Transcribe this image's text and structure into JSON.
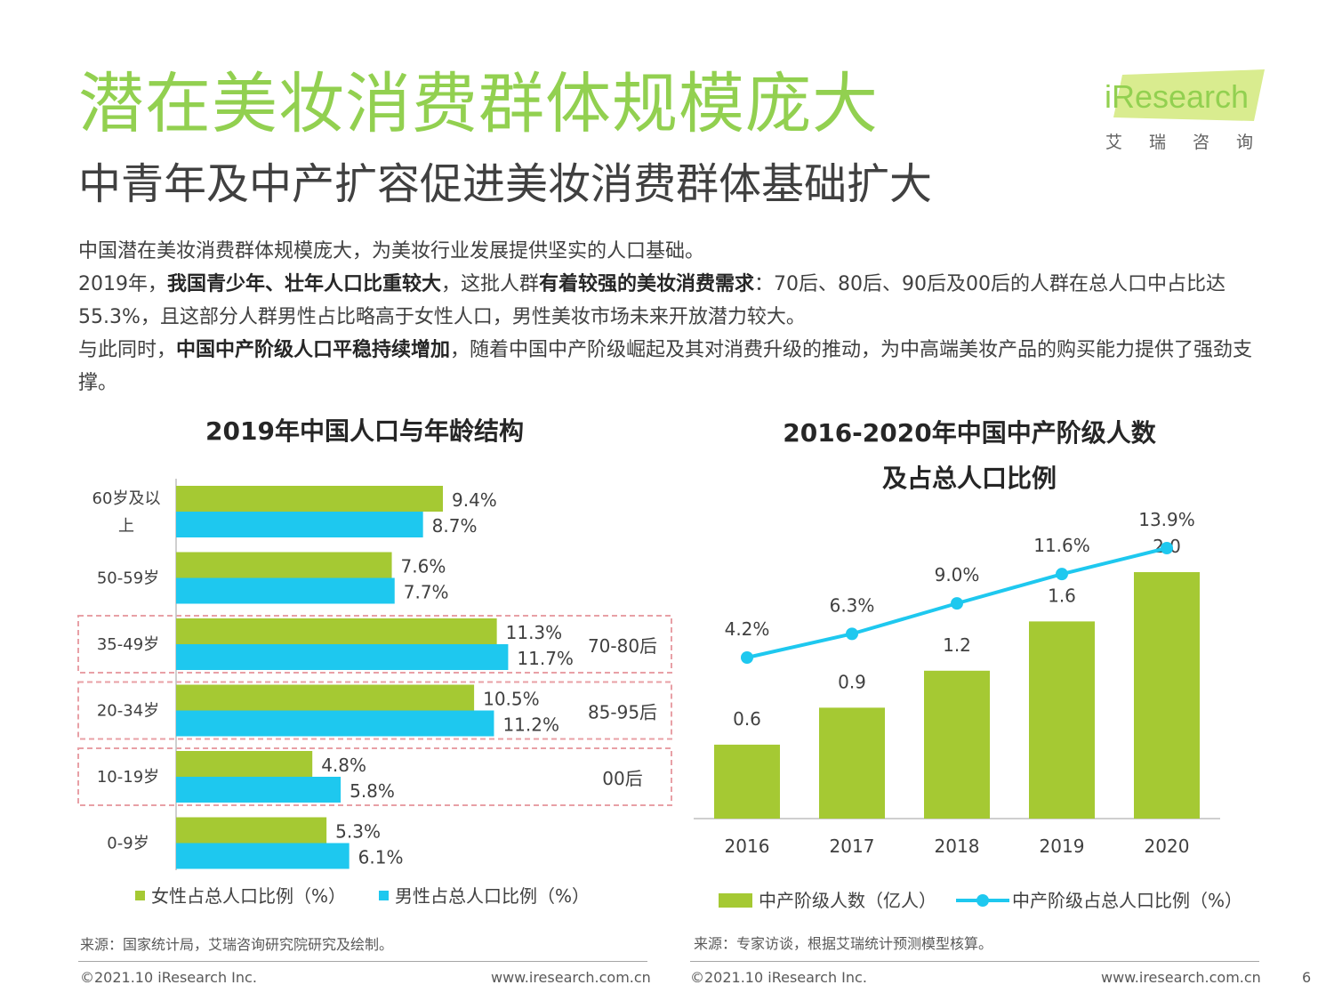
{
  "header": {
    "title": "潜在美妆消费群体规模庞大",
    "subtitle": "中青年及中产扩容促进美妆消费群体基础扩大",
    "logo_text": "iResearch",
    "logo_cn": "艾瑞咨询"
  },
  "intro": {
    "line1": "中国潜在美妆消费群体规模庞大，为美妆行业发展提供坚实的人口基础。",
    "p2_a": "2019年，",
    "p2_b": "我国青少年、壮年人口比重较大",
    "p2_c": "，这批人群",
    "p2_d": "有着较强的美妆消费需求",
    "p2_e": "：70后、80后、90后及00后的人群在总人口中占比达55.3%，且这部分人群男性占比略高于女性人口，男性美妆市场未来开放潜力较大。",
    "p3_a": "与此同时，",
    "p3_b": "中国中产阶级人口平稳持续增加",
    "p3_c": "，随着中国中产阶级崛起及其对消费升级的推动，为中高端美妆产品的购买能力提供了强劲支撑。"
  },
  "colors": {
    "green": "#a5c933",
    "blue": "#1ec8ef",
    "title_green": "#92d050",
    "highlight_border": "#e8a0a6"
  },
  "chart_data": [
    {
      "type": "bar",
      "title": "2019年中国人口与年龄结构",
      "categories": [
        "60岁及以上",
        "50-59岁",
        "35-49岁",
        "20-34岁",
        "10-19岁",
        "0-9岁"
      ],
      "series": [
        {
          "name": "女性占总人口比例（%）",
          "values": [
            9.4,
            7.6,
            11.3,
            10.5,
            4.8,
            5.3
          ],
          "labels": [
            "9.4%",
            "7.6%",
            "11.3%",
            "10.5%",
            "4.8%",
            "5.3%"
          ]
        },
        {
          "name": "男性占总人口比例（%）",
          "values": [
            8.7,
            7.7,
            11.7,
            11.2,
            5.8,
            6.1
          ],
          "labels": [
            "8.7%",
            "7.7%",
            "11.7%",
            "11.2%",
            "5.8%",
            "6.1%"
          ]
        }
      ],
      "annotations": [
        {
          "category": "35-49岁",
          "text": "70-80后"
        },
        {
          "category": "20-34岁",
          "text": "85-95后"
        },
        {
          "category": "10-19岁",
          "text": "00后"
        }
      ],
      "xlim": [
        0,
        12
      ],
      "source": "来源：国家统计局，艾瑞咨询研究院研究及绘制。"
    },
    {
      "type": "bar",
      "title_line1": "2016-2020年中国中产阶级人数",
      "title_line2": "及占总人口比例",
      "categories": [
        "2016",
        "2017",
        "2018",
        "2019",
        "2020"
      ],
      "bar_series": {
        "name": "中产阶级人数（亿人）",
        "values": [
          0.6,
          0.9,
          1.2,
          1.6,
          2.0
        ],
        "labels": [
          "0.6",
          "0.9",
          "1.2",
          "1.6",
          "2.0"
        ]
      },
      "line_series": {
        "name": "中产阶级占总人口比例（%）",
        "values": [
          4.2,
          6.3,
          9.0,
          11.6,
          13.9
        ],
        "labels": [
          "4.2%",
          "6.3%",
          "9.0%",
          "11.6%",
          "13.9%"
        ]
      },
      "source": "来源：专家访谈，根据艾瑞统计预测模型核算。"
    }
  ],
  "footer": {
    "copyright_left": "©2021.10 iResearch Inc.",
    "url_left": "www.iresearch.com.cn",
    "copyright_right": "©2021.10 iResearch Inc.",
    "url_right": "www.iresearch.com.cn",
    "page": "6"
  }
}
